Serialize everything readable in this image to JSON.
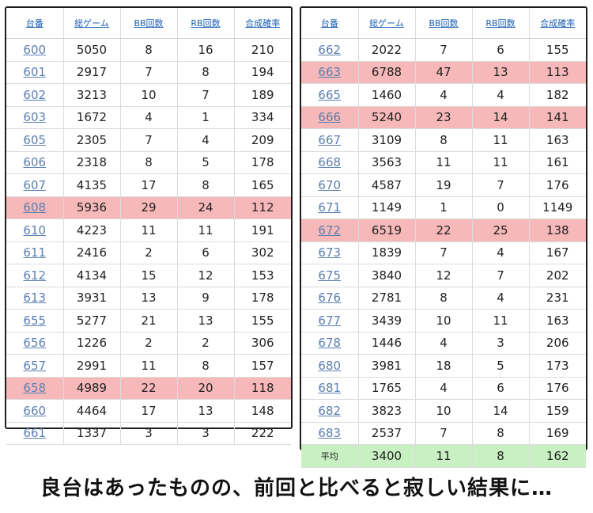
{
  "headers": [
    "台番",
    "総ゲーム",
    "BB回数",
    "RB回数",
    "合成確率"
  ],
  "left_table": {
    "rows": [
      {
        "id": "600",
        "games": "5050",
        "bb": "8",
        "rb": "16",
        "rate": "210",
        "highlight": false
      },
      {
        "id": "601",
        "games": "2917",
        "bb": "7",
        "rb": "8",
        "rate": "194",
        "highlight": false
      },
      {
        "id": "602",
        "games": "3213",
        "bb": "10",
        "rb": "7",
        "rate": "189",
        "highlight": false
      },
      {
        "id": "603",
        "games": "1672",
        "bb": "4",
        "rb": "1",
        "rate": "334",
        "highlight": false
      },
      {
        "id": "605",
        "games": "2305",
        "bb": "7",
        "rb": "4",
        "rate": "209",
        "highlight": false
      },
      {
        "id": "606",
        "games": "2318",
        "bb": "8",
        "rb": "5",
        "rate": "178",
        "highlight": false
      },
      {
        "id": "607",
        "games": "4135",
        "bb": "17",
        "rb": "8",
        "rate": "165",
        "highlight": false
      },
      {
        "id": "608",
        "games": "5936",
        "bb": "29",
        "rb": "24",
        "rate": "112",
        "highlight": true
      },
      {
        "id": "610",
        "games": "4223",
        "bb": "11",
        "rb": "11",
        "rate": "191",
        "highlight": false
      },
      {
        "id": "611",
        "games": "2416",
        "bb": "2",
        "rb": "6",
        "rate": "302",
        "highlight": false
      },
      {
        "id": "612",
        "games": "4134",
        "bb": "15",
        "rb": "12",
        "rate": "153",
        "highlight": false
      },
      {
        "id": "613",
        "games": "3931",
        "bb": "13",
        "rb": "9",
        "rate": "178",
        "highlight": false
      },
      {
        "id": "655",
        "games": "5277",
        "bb": "21",
        "rb": "13",
        "rate": "155",
        "highlight": false
      },
      {
        "id": "656",
        "games": "1226",
        "bb": "2",
        "rb": "2",
        "rate": "306",
        "highlight": false
      },
      {
        "id": "657",
        "games": "2991",
        "bb": "11",
        "rb": "8",
        "rate": "157",
        "highlight": false
      },
      {
        "id": "658",
        "games": "4989",
        "bb": "22",
        "rb": "20",
        "rate": "118",
        "highlight": true
      },
      {
        "id": "660",
        "games": "4464",
        "bb": "17",
        "rb": "13",
        "rate": "148",
        "highlight": false
      },
      {
        "id": "661",
        "games": "1337",
        "bb": "3",
        "rb": "3",
        "rate": "222",
        "highlight": false
      }
    ]
  },
  "right_table": {
    "rows": [
      {
        "id": "662",
        "games": "2022",
        "bb": "7",
        "rb": "6",
        "rate": "155",
        "highlight": false
      },
      {
        "id": "663",
        "games": "6788",
        "bb": "47",
        "rb": "13",
        "rate": "113",
        "highlight": true
      },
      {
        "id": "665",
        "games": "1460",
        "bb": "4",
        "rb": "4",
        "rate": "182",
        "highlight": false
      },
      {
        "id": "666",
        "games": "5240",
        "bb": "23",
        "rb": "14",
        "rate": "141",
        "highlight": true
      },
      {
        "id": "667",
        "games": "3109",
        "bb": "8",
        "rb": "11",
        "rate": "163",
        "highlight": false
      },
      {
        "id": "668",
        "games": "3563",
        "bb": "11",
        "rb": "11",
        "rate": "161",
        "highlight": false
      },
      {
        "id": "670",
        "games": "4587",
        "bb": "19",
        "rb": "7",
        "rate": "176",
        "highlight": false
      },
      {
        "id": "671",
        "games": "1149",
        "bb": "1",
        "rb": "0",
        "rate": "1149",
        "highlight": false
      },
      {
        "id": "672",
        "games": "6519",
        "bb": "22",
        "rb": "25",
        "rate": "138",
        "highlight": true
      },
      {
        "id": "673",
        "games": "1839",
        "bb": "7",
        "rb": "4",
        "rate": "167",
        "highlight": false
      },
      {
        "id": "675",
        "games": "3840",
        "bb": "12",
        "rb": "7",
        "rate": "202",
        "highlight": false
      },
      {
        "id": "676",
        "games": "2781",
        "bb": "8",
        "rb": "4",
        "rate": "231",
        "highlight": false
      },
      {
        "id": "677",
        "games": "3439",
        "bb": "10",
        "rb": "11",
        "rate": "163",
        "highlight": false
      },
      {
        "id": "678",
        "games": "1446",
        "bb": "4",
        "rb": "3",
        "rate": "206",
        "highlight": false
      },
      {
        "id": "680",
        "games": "3981",
        "bb": "18",
        "rb": "5",
        "rate": "173",
        "highlight": false
      },
      {
        "id": "681",
        "games": "1765",
        "bb": "4",
        "rb": "6",
        "rate": "176",
        "highlight": false
      },
      {
        "id": "682",
        "games": "3823",
        "bb": "10",
        "rb": "14",
        "rate": "159",
        "highlight": false
      },
      {
        "id": "683",
        "games": "2537",
        "bb": "7",
        "rb": "8",
        "rate": "169",
        "highlight": false
      }
    ],
    "average": {
      "label": "平均",
      "games": "3400",
      "bb": "11",
      "rb": "8",
      "rate": "162"
    }
  },
  "caption": "良台はあったものの、前回と比べると寂しい結果に…",
  "colors": {
    "highlight_row": "#f6b8b8",
    "average_row": "#c9f0c2",
    "link": "#1a5fb4"
  }
}
